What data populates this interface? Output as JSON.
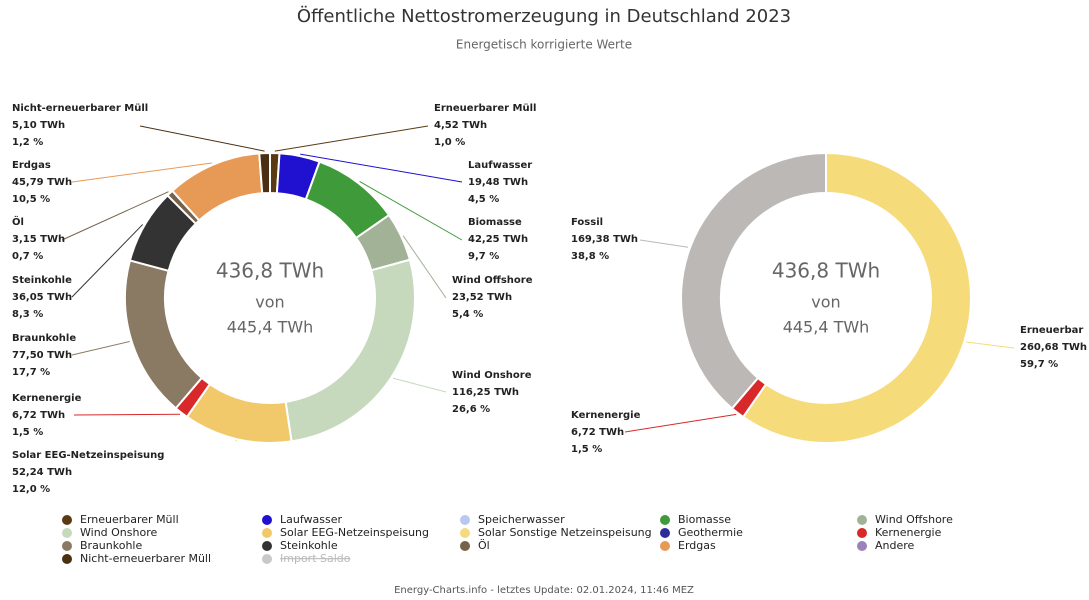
{
  "title": "Öffentliche Nettostromerzeugung in Deutschland 2023",
  "subtitle": "Energetisch korrigierte Werte",
  "footer": "Energy-Charts.info - letztes Update: 02.01.2024, 11:46 MEZ",
  "chart_data": [
    {
      "type": "donut",
      "center_text": [
        "436,8 TWh",
        "von",
        "445,4 TWh"
      ],
      "categories": [
        "Erneuerbarer Müll",
        "Laufwasser",
        "Biomasse",
        "Wind Offshore",
        "Wind Onshore",
        "Solar EEG-Netzeinspeisung",
        "Kernenergie",
        "Braunkohle",
        "Steinkohle",
        "Öl",
        "Erdgas",
        "Nicht-erneuerbarer Müll"
      ],
      "values": [
        4.52,
        19.48,
        42.25,
        23.52,
        116.25,
        52.24,
        6.72,
        77.5,
        36.05,
        3.15,
        45.79,
        5.1
      ],
      "value_labels": [
        "4,52 TWh",
        "19,48 TWh",
        "42,25 TWh",
        "23,52 TWh",
        "116,25 TWh",
        "52,24 TWh",
        "6,72 TWh",
        "77,50 TWh",
        "36,05 TWh",
        "3,15 TWh",
        "45,79 TWh",
        "5,10 TWh"
      ],
      "percent_labels": [
        "1,0 %",
        "4,5 %",
        "9,7 %",
        "5,4 %",
        "26,6 %",
        "12,0 %",
        "1,5 %",
        "17,7 %",
        "8,3 %",
        "0,7 %",
        "10,5 %",
        "1,2 %"
      ],
      "colors": [
        "#5a3a12",
        "#2010d0",
        "#3f9a3a",
        "#a2b297",
        "#c6d9bd",
        "#f1c96a",
        "#d8282a",
        "#8b7a63",
        "#333333",
        "#76634a",
        "#e79a55",
        "#4a2f10"
      ]
    },
    {
      "type": "donut",
      "center_text": [
        "436,8 TWh",
        "von",
        "445,4 TWh"
      ],
      "categories": [
        "Erneuerbar",
        "Kernenergie",
        "Fossil"
      ],
      "values": [
        260.68,
        6.72,
        169.38
      ],
      "value_labels": [
        "260,68 TWh",
        "6,72 TWh",
        "169,38 TWh"
      ],
      "percent_labels": [
        "59,7 %",
        "1,5 %",
        "38,8 %"
      ],
      "colors": [
        "#f5db7a",
        "#d8282a",
        "#bcb8b6"
      ]
    }
  ],
  "legend": {
    "items": [
      {
        "name": "Erneuerbarer Müll",
        "color": "#5a3a12",
        "hidden": false
      },
      {
        "name": "Laufwasser",
        "color": "#2010d0",
        "hidden": false
      },
      {
        "name": "Speicherwasser",
        "color": "#b8c8f0",
        "hidden": false
      },
      {
        "name": "Biomasse",
        "color": "#3f9a3a",
        "hidden": false
      },
      {
        "name": "Wind Offshore",
        "color": "#a2b297",
        "hidden": false
      },
      {
        "name": "Wind Onshore",
        "color": "#c6d9bd",
        "hidden": false
      },
      {
        "name": "Solar EEG-Netzeinspeisung",
        "color": "#f1c96a",
        "hidden": false
      },
      {
        "name": "Solar Sonstige Netzeinspeisung",
        "color": "#f5db80",
        "hidden": false
      },
      {
        "name": "Geothermie",
        "color": "#2d2d9a",
        "hidden": false
      },
      {
        "name": "Kernenergie",
        "color": "#d8282a",
        "hidden": false
      },
      {
        "name": "Braunkohle",
        "color": "#8b7a63",
        "hidden": false
      },
      {
        "name": "Steinkohle",
        "color": "#333333",
        "hidden": false
      },
      {
        "name": "Öl",
        "color": "#76634a",
        "hidden": false
      },
      {
        "name": "Erdgas",
        "color": "#e79a55",
        "hidden": false
      },
      {
        "name": "Andere",
        "color": "#9b82b8",
        "hidden": false
      },
      {
        "name": "Nicht-erneuerbarer Müll",
        "color": "#4a2f10",
        "hidden": false
      },
      {
        "name": "Import Saldo",
        "color": "#c8c8c8",
        "hidden": true
      }
    ]
  }
}
